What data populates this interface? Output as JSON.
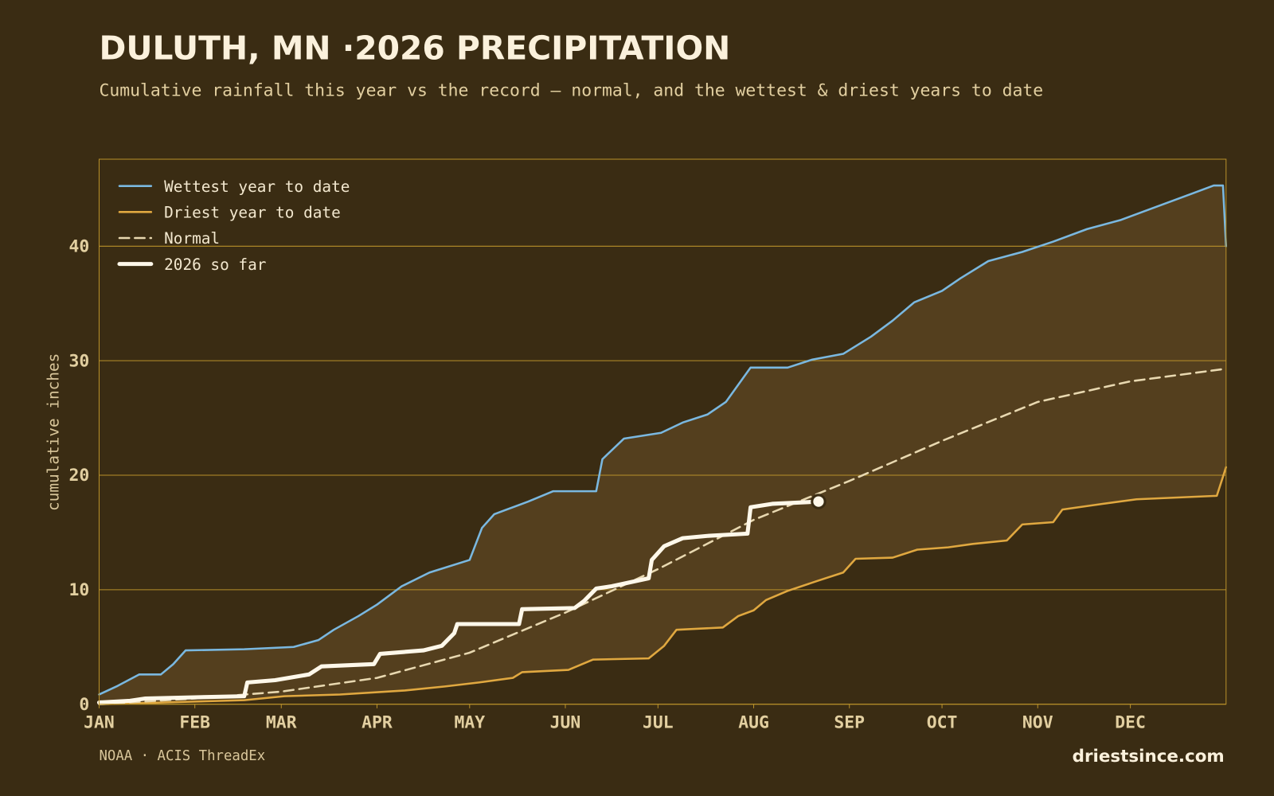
{
  "chart_data": {
    "type": "line",
    "title": "DULUTH, MN ·2026 PRECIPITATION",
    "subtitle": "Cumulative rainfall this year vs the record — normal, and the wettest & driest years to date",
    "y_label": "cumulative inches",
    "source": "NOAA · ACIS ThreadEx",
    "brand": "driestsince.com",
    "xlim": [
      0,
      365
    ],
    "xticks": [
      {
        "value": 0,
        "label": "JAN"
      },
      {
        "value": 31,
        "label": "FEB"
      },
      {
        "value": 59,
        "label": "MAR"
      },
      {
        "value": 90,
        "label": "APR"
      },
      {
        "value": 120,
        "label": "MAY"
      },
      {
        "value": 151,
        "label": "JUN"
      },
      {
        "value": 181,
        "label": "JUL"
      },
      {
        "value": 212,
        "label": "AUG"
      },
      {
        "value": 243,
        "label": "SEP"
      },
      {
        "value": 273,
        "label": "OCT"
      },
      {
        "value": 304,
        "label": "NOV"
      },
      {
        "value": 334,
        "label": "DEC"
      }
    ],
    "ylim": [
      0,
      47.6
    ],
    "yticks": [
      0,
      10,
      20,
      30,
      40
    ],
    "grid": true,
    "legend": "top-left",
    "band": {
      "color": "#543f1e"
    },
    "series": [
      {
        "name": "Wettest year to date",
        "color": "#7ab8e0",
        "width": 2.5,
        "x": [
          0,
          6,
          13,
          20,
          24,
          28,
          47,
          63,
          71,
          76,
          84,
          90,
          98,
          107,
          120,
          124,
          128,
          139,
          147,
          161,
          163,
          170,
          182,
          189,
          197,
          203,
          211,
          223,
          231,
          241,
          250,
          257,
          264,
          273,
          279,
          288,
          299,
          309,
          320,
          331,
          341,
          354,
          361,
          364,
          365
        ],
        "values": [
          0.85,
          1.6,
          2.6,
          2.6,
          3.5,
          4.7,
          4.8,
          5.0,
          5.6,
          6.5,
          7.7,
          8.7,
          10.3,
          11.5,
          12.6,
          15.4,
          16.6,
          17.7,
          18.6,
          18.6,
          21.4,
          23.2,
          23.7,
          24.6,
          25.3,
          26.4,
          29.4,
          29.4,
          30.1,
          30.6,
          32.1,
          33.5,
          35.1,
          36.1,
          37.2,
          38.7,
          39.5,
          40.4,
          41.5,
          42.3,
          43.3,
          44.6,
          45.3,
          45.3,
          40.0
        ]
      },
      {
        "name": "Driest year to date",
        "color": "#e0a840",
        "width": 2.5,
        "x": [
          0,
          47,
          60,
          78,
          99,
          112,
          123,
          134,
          137,
          152,
          160,
          178,
          183,
          187,
          202,
          207,
          212,
          216,
          223,
          233,
          241,
          245,
          257,
          265,
          275,
          283,
          294,
          299,
          309,
          312,
          325,
          336,
          362,
          365
        ],
        "values": [
          0,
          0.35,
          0.7,
          0.85,
          1.2,
          1.55,
          1.9,
          2.3,
          2.8,
          3.0,
          3.9,
          4.0,
          5.1,
          6.5,
          6.7,
          7.7,
          8.2,
          9.1,
          9.9,
          10.8,
          11.5,
          12.7,
          12.8,
          13.5,
          13.7,
          14.0,
          14.3,
          15.7,
          15.9,
          17.0,
          17.5,
          17.9,
          18.2,
          20.7
        ]
      },
      {
        "name": "Normal",
        "color": "#e8d8b0",
        "width": 2.5,
        "dashed": true,
        "x": [
          0,
          31,
          59,
          90,
          120,
          151,
          181,
          212,
          243,
          273,
          304,
          334,
          365
        ],
        "values": [
          0,
          0.5,
          1.1,
          2.3,
          4.5,
          8.0,
          11.8,
          16.1,
          19.5,
          23.0,
          26.4,
          28.2,
          29.3
        ]
      },
      {
        "name": "2026 so far",
        "color": "#fff8ea",
        "width": 5,
        "end_marker": true,
        "x": [
          0,
          10,
          15,
          47,
          48,
          57,
          68,
          72,
          89,
          91,
          105,
          111,
          115,
          116,
          136,
          137,
          154,
          157,
          161,
          166,
          178,
          179,
          183,
          189,
          197,
          210,
          211,
          218,
          233
        ],
        "values": [
          0.15,
          0.3,
          0.5,
          0.7,
          1.9,
          2.1,
          2.6,
          3.3,
          3.5,
          4.4,
          4.7,
          5.1,
          6.2,
          7.0,
          7.0,
          8.3,
          8.4,
          9.0,
          10.1,
          10.3,
          11.0,
          12.6,
          13.8,
          14.5,
          14.7,
          14.9,
          17.2,
          17.5,
          17.7
        ]
      }
    ]
  }
}
